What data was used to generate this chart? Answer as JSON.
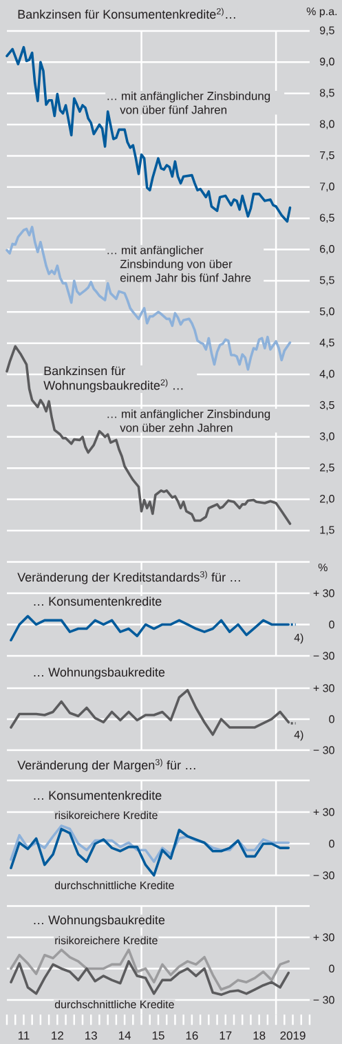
{
  "chart_data": [
    {
      "type": "line",
      "title": "Bankzinsen für Konsumentenkredite$^{2)}$…",
      "ylabel": "% p.a.",
      "annotations": [
        "Bankzinsen für Wohnungsbaukredite$^{2)}$ …"
      ],
      "grid": "y",
      "xlim": [
        "2011-01-01",
        "2020-01-01"
      ],
      "ylim": [
        1.5,
        9.5
      ],
      "tick_labels": "y",
      "yticks": [
        {
          "value": 1.5,
          "label": "1,5"
        },
        {
          "value": 2.0,
          "label": "2,0"
        },
        {
          "value": 2.5,
          "label": "2,5"
        },
        {
          "value": 3.0,
          "label": "3,0"
        },
        {
          "value": 3.5,
          "label": "3,5"
        },
        {
          "value": 4.0,
          "label": "4,0"
        },
        {
          "value": 4.5,
          "label": "4,5"
        },
        {
          "value": 5.0,
          "label": "5,0"
        },
        {
          "value": 5.5,
          "label": "5,5"
        },
        {
          "value": 6.0,
          "label": "6,0"
        },
        {
          "value": 6.5,
          "label": "6,5"
        },
        {
          "value": 7.0,
          "label": "7,0"
        },
        {
          "value": 7.5,
          "label": "7,5"
        },
        {
          "value": 8.0,
          "label": "8,0"
        },
        {
          "value": 8.5,
          "label": "8,5"
        },
        {
          "value": 9.0,
          "label": "9,0"
        },
        {
          "value": 9.5,
          "label": "9,5"
        }
      ],
      "ref_lines": [
        {
          "axis": "x",
          "value": "2015-01-01",
          "color": "#ffffff"
        },
        {
          "axis": "x",
          "value": "2019-01-01",
          "color": "#ffffff"
        }
      ],
      "series": [
        {
          "name": "… mit anfänglicher Zinsbindung von über fünf Jahren",
          "color": "#005b9c",
          "x": [
            "2011-01",
            "2011-03",
            "2011-05",
            "2011-07",
            "2011-08",
            "2011-09",
            "2011-10",
            "2011-11",
            "2011-12",
            "2012-01",
            "2012-02",
            "2012-03",
            "2012-04",
            "2012-05",
            "2012-06",
            "2012-07",
            "2012-08",
            "2012-09",
            "2012-10",
            "2012-12",
            "2013-01",
            "2013-02",
            "2013-03",
            "2013-04",
            "2013-05",
            "2013-06",
            "2013-07",
            "2013-08",
            "2013-10",
            "2013-11",
            "2013-12",
            "2014-01",
            "2014-03",
            "2014-04",
            "2014-05",
            "2014-07",
            "2014-08",
            "2014-09",
            "2014-10",
            "2014-11",
            "2014-12",
            "2015-01",
            "2015-02",
            "2015-03",
            "2015-04",
            "2015-05",
            "2015-07",
            "2015-08",
            "2015-09",
            "2015-10",
            "2015-11",
            "2015-12",
            "2016-01",
            "2016-02",
            "2016-03",
            "2016-04",
            "2016-07",
            "2016-08",
            "2016-09",
            "2016-10",
            "2016-12",
            "2017-01",
            "2017-02",
            "2017-04",
            "2017-05",
            "2017-07",
            "2017-09",
            "2017-10",
            "2017-11",
            "2017-12",
            "2018-01",
            "2018-03",
            "2018-04",
            "2018-05",
            "2018-07",
            "2018-09",
            "2018-11",
            "2018-12",
            "2019-01",
            "2019-03",
            "2019-05",
            "2019-06"
          ],
          "values": [
            9.1,
            9.21,
            8.97,
            9.24,
            9.02,
            9.04,
            9.15,
            8.67,
            8.38,
            9.0,
            8.86,
            8.32,
            8.39,
            8.39,
            8.14,
            8.49,
            8.23,
            8.18,
            8.31,
            7.83,
            8.42,
            8.32,
            8.21,
            8.31,
            8.27,
            8.1,
            8.03,
            7.85,
            8.0,
            7.94,
            7.65,
            8.21,
            7.77,
            7.79,
            7.92,
            7.92,
            7.72,
            7.63,
            7.67,
            7.46,
            7.21,
            7.52,
            7.46,
            6.99,
            6.95,
            7.15,
            7.46,
            7.3,
            7.28,
            7.35,
            7.32,
            7.17,
            7.41,
            7.17,
            7.06,
            7.17,
            7.19,
            7.06,
            6.95,
            6.97,
            6.84,
            6.93,
            6.69,
            6.62,
            6.84,
            6.86,
            6.71,
            6.8,
            6.78,
            6.64,
            6.86,
            6.53,
            6.66,
            6.89,
            6.89,
            6.78,
            6.8,
            6.71,
            6.69,
            6.55,
            6.45,
            6.67
          ]
        },
        {
          "name": "… mit anfänglicher Zinsbindung von über einem Jahr bis fünf Jahre",
          "color": "#8db1da",
          "x": [
            "2011-01",
            "2011-02",
            "2011-03",
            "2011-04",
            "2011-05",
            "2011-07",
            "2011-08",
            "2011-09",
            "2011-10",
            "2011-11",
            "2011-12",
            "2012-01",
            "2012-03",
            "2012-04",
            "2012-05",
            "2012-06",
            "2012-07",
            "2012-08",
            "2012-09",
            "2012-10",
            "2012-12",
            "2013-01",
            "2013-02",
            "2013-03",
            "2013-05",
            "2013-06",
            "2013-07",
            "2013-08",
            "2013-09",
            "2013-10",
            "2013-12",
            "2014-01",
            "2014-02",
            "2014-04",
            "2014-05",
            "2014-07",
            "2014-08",
            "2014-09",
            "2014-10",
            "2014-12",
            "2015-01",
            "2015-02",
            "2015-03",
            "2015-04",
            "2015-05",
            "2015-07",
            "2015-08",
            "2015-10",
            "2015-11",
            "2015-12",
            "2016-01",
            "2016-02",
            "2016-03",
            "2016-04",
            "2016-06",
            "2016-07",
            "2016-08",
            "2016-09",
            "2016-10",
            "2016-11",
            "2016-12",
            "2017-01",
            "2017-02",
            "2017-03",
            "2017-04",
            "2017-05",
            "2017-06",
            "2017-07",
            "2017-08",
            "2017-09",
            "2017-10",
            "2017-11",
            "2017-12",
            "2018-01",
            "2018-02",
            "2018-03",
            "2018-04",
            "2018-05",
            "2018-06",
            "2018-07",
            "2018-08",
            "2018-09",
            "2018-10",
            "2018-11",
            "2019-01",
            "2019-02",
            "2019-03",
            "2019-04",
            "2019-06"
          ],
          "values": [
            5.99,
            5.94,
            6.09,
            6.08,
            6.2,
            6.31,
            6.33,
            6.23,
            6.36,
            6.12,
            5.96,
            6.12,
            5.74,
            5.61,
            5.66,
            5.61,
            5.74,
            5.55,
            5.46,
            5.46,
            5.15,
            5.5,
            5.33,
            5.28,
            5.35,
            5.39,
            5.48,
            5.37,
            5.32,
            5.26,
            5.19,
            5.46,
            5.3,
            5.21,
            5.33,
            5.3,
            5.19,
            5.06,
            5.0,
            4.89,
            4.98,
            5.06,
            4.82,
            4.93,
            4.93,
            5.0,
            4.97,
            4.89,
            4.89,
            4.78,
            4.98,
            4.91,
            4.8,
            4.87,
            4.89,
            4.82,
            4.71,
            4.54,
            4.51,
            4.49,
            4.4,
            4.58,
            4.34,
            4.16,
            4.36,
            4.47,
            4.49,
            4.56,
            4.54,
            4.31,
            4.31,
            4.29,
            4.16,
            4.32,
            4.27,
            4.08,
            4.27,
            4.42,
            4.4,
            4.56,
            4.58,
            4.42,
            4.6,
            4.4,
            4.53,
            4.42,
            4.23,
            4.38,
            4.51
          ]
        },
        {
          "name": "… mit anfänglicher Zinsbindung von über zehn Jahren",
          "color": "#5b5b5d",
          "x": [
            "2011-01",
            "2011-02",
            "2011-04",
            "2011-06",
            "2011-08",
            "2011-09",
            "2011-10",
            "2011-12",
            "2012-01",
            "2012-02",
            "2012-03",
            "2012-04",
            "2012-05",
            "2012-06",
            "2012-08",
            "2012-09",
            "2012-10",
            "2012-12",
            "2013-01",
            "2013-03",
            "2013-04",
            "2013-05",
            "2013-06",
            "2013-08",
            "2013-09",
            "2013-10",
            "2013-11",
            "2013-12",
            "2014-01",
            "2014-02",
            "2014-04",
            "2014-05",
            "2014-06",
            "2014-07",
            "2014-09",
            "2014-10",
            "2014-12",
            "2015-01",
            "2015-02",
            "2015-03",
            "2015-04",
            "2015-05",
            "2015-06",
            "2015-08",
            "2015-09",
            "2015-10",
            "2015-12",
            "2016-01",
            "2016-02",
            "2016-03",
            "2016-04",
            "2016-05",
            "2016-07",
            "2016-08",
            "2016-10",
            "2016-12",
            "2017-01",
            "2017-02",
            "2017-04",
            "2017-05",
            "2017-06",
            "2017-08",
            "2017-10",
            "2017-12",
            "2018-01",
            "2018-02",
            "2018-03",
            "2018-05",
            "2018-06",
            "2018-09",
            "2018-11",
            "2019-01",
            "2019-03",
            "2019-06"
          ],
          "values": [
            4.05,
            4.2,
            4.45,
            4.32,
            4.16,
            3.77,
            3.59,
            3.48,
            3.59,
            3.52,
            3.41,
            3.57,
            3.31,
            3.11,
            3.04,
            2.98,
            2.98,
            2.89,
            2.96,
            2.95,
            3.0,
            2.84,
            2.75,
            2.87,
            2.98,
            3.09,
            3.05,
            3.0,
            3.04,
            2.91,
            2.95,
            2.8,
            2.69,
            2.53,
            2.38,
            2.31,
            2.2,
            1.81,
            1.99,
            1.86,
            1.96,
            1.77,
            2.07,
            2.14,
            2.12,
            2.14,
            2.03,
            2.05,
            1.97,
            1.86,
            1.96,
            1.81,
            1.76,
            1.66,
            1.66,
            1.72,
            1.86,
            1.88,
            1.92,
            1.86,
            1.88,
            1.98,
            1.96,
            1.86,
            1.92,
            1.92,
            1.98,
            1.99,
            1.96,
            1.94,
            1.97,
            1.94,
            1.81,
            1.61
          ]
        }
      ]
    },
    {
      "type": "line",
      "title": "Veränderung der Kreditstandards$^{3)}$ für …",
      "ylabel": "%",
      "annotations": [
        "4)"
      ],
      "grid": "y",
      "xlim": [
        "2011-01-01",
        "2020-01-01"
      ],
      "ylim": [
        -30,
        60
      ],
      "tick_labels": "y",
      "yticks": [
        {
          "value": -30,
          "label": "− 30"
        },
        0,
        {
          "value": 30,
          "label": "+ 30"
        },
        {
          "value": 60,
          "label": null
        }
      ],
      "ref_lines": [
        {
          "axis": "x",
          "value": "2015-01-01",
          "color": "#ffffff"
        },
        {
          "axis": "x",
          "value": "2019-01-01",
          "color": "#ffffff"
        }
      ],
      "x": [
        "2011-02-15",
        "2011-05-15",
        "2011-08-15",
        "2011-11-15",
        "2012-02-15",
        "2012-05-15",
        "2012-08-15",
        "2012-11-15",
        "2013-02-15",
        "2013-05-15",
        "2013-08-15",
        "2013-11-15",
        "2014-02-15",
        "2014-05-15",
        "2014-08-15",
        "2014-11-15",
        "2015-02-15",
        "2015-05-15",
        "2015-08-15",
        "2015-11-15",
        "2016-02-15",
        "2016-05-15",
        "2016-08-15",
        "2016-11-15",
        "2017-02-15",
        "2017-05-15",
        "2017-08-15",
        "2017-11-15",
        "2018-02-15",
        "2018-05-15",
        "2018-08-15",
        "2018-11-15",
        "2019-02-15",
        "2019-05-15"
      ],
      "series": [
        {
          "name": "… Konsumentenkredite",
          "color": "#005b9c",
          "values": [
            -15,
            0,
            8,
            0,
            4,
            4,
            4,
            -7,
            -4,
            -4,
            4,
            0,
            4,
            -7,
            -4,
            -11,
            0,
            -4,
            0,
            0,
            4,
            0,
            -4,
            -7,
            -4,
            4,
            -7,
            0,
            -10,
            -3,
            4,
            0,
            0,
            0
          ]
        },
        {
          "color": "#005b9c",
          "line_style": "dotted",
          "x": [
            "2019-06-10",
            "2019-08-01"
          ],
          "values": [
            0,
            0
          ]
        }
      ]
    },
    {
      "type": "line",
      "annotations": [
        "4)"
      ],
      "grid": "y",
      "xlim": [
        "2011-01-01",
        "2020-01-01"
      ],
      "ylim": [
        -30,
        30
      ],
      "tick_labels": "y",
      "yticks": [
        {
          "value": -30,
          "label": "− 30"
        },
        0,
        {
          "value": 30,
          "label": "+ 30"
        }
      ],
      "ref_lines": [
        {
          "axis": "x",
          "value": "2015-01-01",
          "color": "#ffffff"
        },
        {
          "axis": "x",
          "value": "2019-01-01",
          "color": "#ffffff"
        }
      ],
      "x": [
        "2011-02-15",
        "2011-05-15",
        "2011-08-15",
        "2011-11-15",
        "2012-02-15",
        "2012-05-15",
        "2012-08-15",
        "2012-11-15",
        "2013-02-15",
        "2013-05-15",
        "2013-08-15",
        "2013-11-15",
        "2014-02-15",
        "2014-05-15",
        "2014-08-15",
        "2014-11-15",
        "2015-02-15",
        "2015-05-15",
        "2015-08-15",
        "2015-11-15",
        "2016-02-15",
        "2016-05-15",
        "2016-08-15",
        "2016-11-15",
        "2017-02-15",
        "2017-05-15",
        "2017-08-15",
        "2017-11-15",
        "2018-02-15",
        "2018-05-15",
        "2018-08-15",
        "2018-11-15",
        "2019-02-15",
        "2019-05-15"
      ],
      "series": [
        {
          "name": "… Wohnungsbaukredite",
          "color": "#5b5b5d",
          "values": [
            -8,
            5,
            5,
            5,
            4,
            7,
            17,
            6,
            3,
            11,
            1,
            -3,
            7,
            -1,
            7,
            -1,
            4,
            4,
            7,
            -1,
            21,
            28,
            11,
            -3,
            -15,
            0,
            -8,
            -8,
            -8,
            -8,
            -4,
            0,
            7,
            -3
          ]
        },
        {
          "color": "#5b5b5d",
          "line_style": "dotted",
          "x": [
            "2019-06-10",
            "2019-08-01"
          ],
          "values": [
            -4,
            -4
          ]
        }
      ]
    },
    {
      "type": "line",
      "title": "Veränderung der Margen$^{3)}$ für …",
      "subtitle": "… Konsumentenkredite",
      "grid": "y",
      "xlim": [
        "2011-01-01",
        "2020-01-01"
      ],
      "ylim": [
        -30,
        60
      ],
      "tick_labels": "y",
      "yticks": [
        {
          "value": -30,
          "label": "− 30"
        },
        0,
        {
          "value": 30,
          "label": "+ 30"
        },
        {
          "value": 60,
          "label": null
        }
      ],
      "ref_lines": [
        {
          "axis": "x",
          "value": "2015-01-01",
          "color": "#ffffff"
        },
        {
          "axis": "x",
          "value": "2019-01-01",
          "color": "#ffffff"
        }
      ],
      "x": [
        "2011-02-15",
        "2011-05-15",
        "2011-08-15",
        "2011-11-15",
        "2012-02-15",
        "2012-05-15",
        "2012-08-15",
        "2012-11-15",
        "2013-02-15",
        "2013-05-15",
        "2013-08-15",
        "2013-11-15",
        "2014-02-15",
        "2014-05-15",
        "2014-08-15",
        "2014-11-15",
        "2015-02-15",
        "2015-05-15",
        "2015-08-15",
        "2015-11-15",
        "2016-02-15",
        "2016-05-15",
        "2016-08-15",
        "2016-11-15",
        "2017-02-15",
        "2017-05-15",
        "2017-08-15",
        "2017-11-15",
        "2018-02-15",
        "2018-05-15",
        "2018-08-15",
        "2018-11-15",
        "2019-02-15",
        "2019-05-15"
      ],
      "series": [
        {
          "name": "risikoreichere Kredite",
          "color": "#8db1da",
          "values": [
            -15,
            8,
            -4,
            1,
            -4,
            7,
            17,
            14,
            0,
            -6,
            3,
            3,
            3,
            -3,
            1,
            -6,
            -6,
            -17,
            -4,
            -10,
            5,
            7,
            3,
            1,
            -4,
            -6,
            -6,
            3,
            -6,
            -6,
            4,
            1,
            1,
            1
          ]
        },
        {
          "name": "durchschnittliche Kredite",
          "color": "#005b9c",
          "values": [
            -23,
            1,
            -5,
            5,
            -20,
            -10,
            14,
            10,
            -10,
            -17,
            0,
            4,
            -4,
            -7,
            -3,
            -3,
            -20,
            -30,
            -6,
            -14,
            13,
            7,
            4,
            1,
            -7,
            -7,
            -4,
            3,
            -12,
            -12,
            0,
            0,
            -4,
            -4
          ]
        }
      ]
    },
    {
      "type": "line",
      "subtitle": "… Wohnungsbaukredite",
      "grid": "y",
      "xlim": [
        "2011-01-01",
        "2020-01-01"
      ],
      "ylim": [
        -44,
        60
      ],
      "yticks": [
        {
          "value": -30,
          "label": "− 30"
        },
        0,
        {
          "value": 30,
          "label": "+ 30"
        },
        {
          "value": 60,
          "label": null
        }
      ],
      "xticks": [
        {
          "value": "2011-01-01",
          "label": null
        },
        {
          "value": "2011-04-01",
          "label": null
        },
        {
          "value": "2011-07-01",
          "label": "11"
        },
        {
          "value": "2011-10-01",
          "label": null
        },
        {
          "value": "2012-01-01",
          "label": null
        },
        {
          "value": "2012-04-01",
          "label": null
        },
        {
          "value": "2012-07-01",
          "label": "12"
        },
        {
          "value": "2012-10-01",
          "label": null
        },
        {
          "value": "2013-01-01",
          "label": null
        },
        {
          "value": "2013-04-01",
          "label": null
        },
        {
          "value": "2013-07-01",
          "label": "13"
        },
        {
          "value": "2013-10-01",
          "label": null
        },
        {
          "value": "2014-01-01",
          "label": null
        },
        {
          "value": "2014-04-01",
          "label": null
        },
        {
          "value": "2014-07-01",
          "label": "14"
        },
        {
          "value": "2014-10-01",
          "label": null
        },
        {
          "value": "2015-01-01",
          "label": null
        },
        {
          "value": "2015-04-01",
          "label": null
        },
        {
          "value": "2015-07-01",
          "label": "15"
        },
        {
          "value": "2015-10-01",
          "label": null
        },
        {
          "value": "2016-01-01",
          "label": null
        },
        {
          "value": "2016-04-01",
          "label": null
        },
        {
          "value": "2016-07-01",
          "label": "16"
        },
        {
          "value": "2016-10-01",
          "label": null
        },
        {
          "value": "2017-01-01",
          "label": null
        },
        {
          "value": "2017-04-01",
          "label": null
        },
        {
          "value": "2017-07-01",
          "label": "17"
        },
        {
          "value": "2017-10-01",
          "label": null
        },
        {
          "value": "2018-01-01",
          "label": null
        },
        {
          "value": "2018-04-01",
          "label": null
        },
        {
          "value": "2018-07-01",
          "label": "18"
        },
        {
          "value": "2018-10-01",
          "label": null
        },
        {
          "value": "2019-01-01",
          "label": null
        },
        {
          "value": "2019-04-01",
          "label": null
        },
        {
          "value": "2019-07-01",
          "label": "2019"
        },
        {
          "value": "2019-10-01",
          "label": null
        },
        {
          "value": "2020-01-01",
          "label": null
        }
      ],
      "ref_lines": [
        {
          "axis": "x",
          "value": "2015-01-01",
          "color": "#ffffff"
        },
        {
          "axis": "x",
          "value": "2019-01-01",
          "color": "#ffffff"
        }
      ],
      "x": [
        "2011-02-15",
        "2011-05-15",
        "2011-08-15",
        "2011-11-15",
        "2012-02-15",
        "2012-05-15",
        "2012-08-15",
        "2012-11-15",
        "2013-02-15",
        "2013-05-15",
        "2013-08-15",
        "2013-11-15",
        "2014-02-15",
        "2014-05-15",
        "2014-08-15",
        "2014-11-15",
        "2015-02-15",
        "2015-05-15",
        "2015-08-15",
        "2015-11-15",
        "2016-02-15",
        "2016-05-15",
        "2016-08-15",
        "2016-11-15",
        "2017-02-15",
        "2017-05-15",
        "2017-08-15",
        "2017-11-15",
        "2018-02-15",
        "2018-05-15",
        "2018-08-15",
        "2018-11-15",
        "2019-02-15",
        "2019-05-15"
      ],
      "series": [
        {
          "name": "risikoreichere Kredite",
          "color": "#9c9c9e",
          "values": [
            0,
            13,
            5,
            -5,
            13,
            10,
            18,
            11,
            7,
            0,
            0,
            0,
            4,
            4,
            18,
            -3,
            0,
            -13,
            4,
            -6,
            2,
            7,
            4,
            11,
            -6,
            -20,
            -17,
            -11,
            -13,
            -9,
            -3,
            -11,
            4,
            7
          ]
        },
        {
          "name": "durchschnittliche Kredite",
          "color": "#5b5b5d",
          "values": [
            -13,
            5,
            -18,
            -24,
            -9,
            4,
            0,
            -3,
            -11,
            0,
            -12,
            -7,
            -11,
            -14,
            7,
            -7,
            -9,
            -24,
            -11,
            -11,
            -4,
            0,
            -7,
            0,
            -23,
            -25,
            -22,
            -21,
            -24,
            -20,
            -16,
            -13,
            -18,
            -4
          ]
        }
      ]
    }
  ]
}
